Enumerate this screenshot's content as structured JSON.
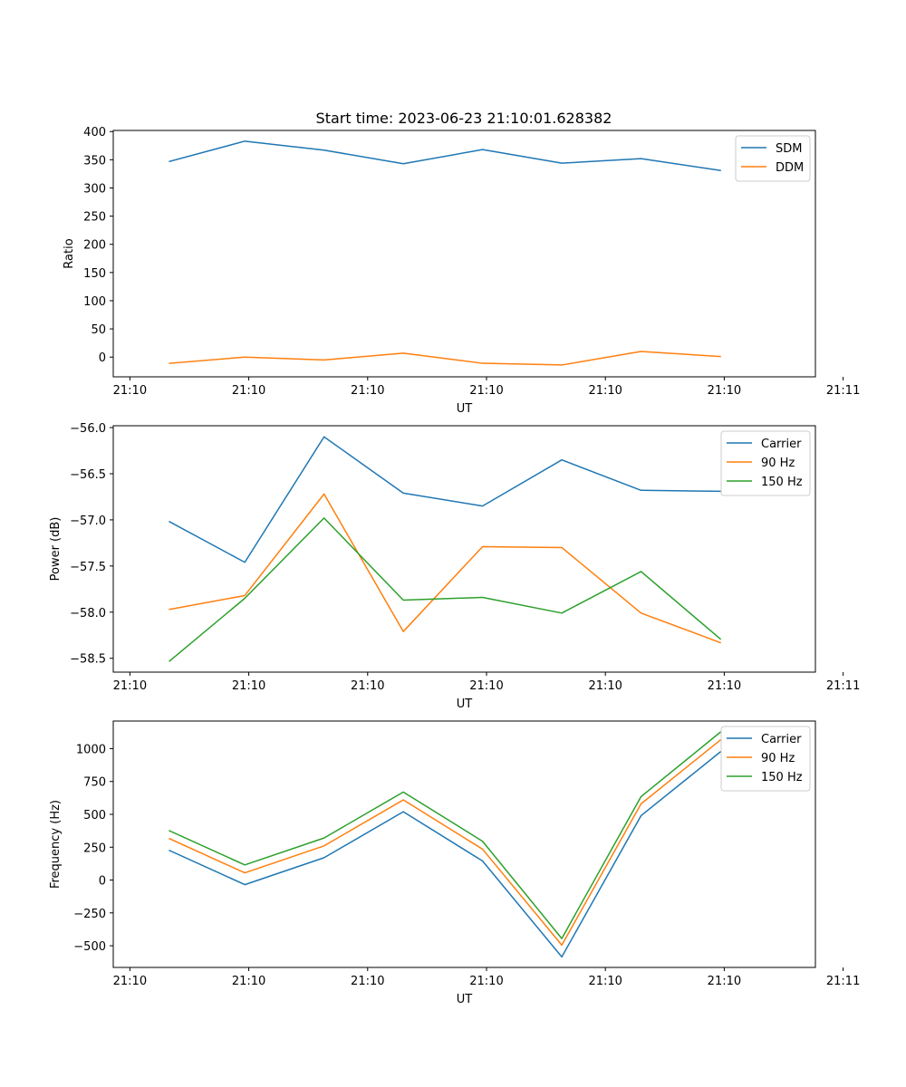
{
  "colors": {
    "blue": "#1f77b4",
    "orange": "#ff7f0e",
    "green": "#2ca02c"
  },
  "chart_data": [
    {
      "type": "line",
      "title": "Start time: 2023-06-23 21:10:01.628382",
      "xlabel": "UT",
      "ylabel": "Ratio",
      "xlim": [
        -0.46,
        8.4
      ],
      "ylim": [
        -35,
        402
      ],
      "x": [
        0.25,
        1.2,
        2.2,
        3.2,
        4.2,
        5.2,
        6.2,
        7.2
      ],
      "x_ticks": [
        {
          "x": -0.25,
          "label": "21:10"
        },
        {
          "x": 1.25,
          "label": "21:10"
        },
        {
          "x": 2.75,
          "label": "21:10"
        },
        {
          "x": 4.25,
          "label": "21:10"
        },
        {
          "x": 5.75,
          "label": "21:10"
        },
        {
          "x": 7.25,
          "label": "21:10"
        },
        {
          "x": 8.75,
          "label": "21:11"
        }
      ],
      "y_ticks": [
        0,
        50,
        100,
        150,
        200,
        250,
        300,
        350,
        400
      ],
      "legend": "top-right",
      "series": [
        {
          "name": "SDM",
          "color": "#1f77b4",
          "values": [
            347,
            383,
            367,
            343,
            368,
            344,
            352,
            331
          ]
        },
        {
          "name": "DDM",
          "color": "#ff7f0e",
          "values": [
            -11,
            0,
            -5,
            7,
            -11,
            -14,
            10,
            1
          ]
        }
      ]
    },
    {
      "type": "line",
      "xlabel": "UT",
      "ylabel": "Power (dB)",
      "xlim": [
        -0.46,
        8.4
      ],
      "ylim": [
        -58.65,
        -55.98
      ],
      "x": [
        0.25,
        1.2,
        2.2,
        3.2,
        4.2,
        5.2,
        6.2,
        7.2
      ],
      "x_ticks": [
        {
          "x": -0.25,
          "label": "21:10"
        },
        {
          "x": 1.25,
          "label": "21:10"
        },
        {
          "x": 2.75,
          "label": "21:10"
        },
        {
          "x": 4.25,
          "label": "21:10"
        },
        {
          "x": 5.75,
          "label": "21:10"
        },
        {
          "x": 7.25,
          "label": "21:10"
        },
        {
          "x": 8.75,
          "label": "21:11"
        }
      ],
      "y_ticks": [
        -56.0,
        -56.5,
        -57.0,
        -57.5,
        -58.0,
        -58.5
      ],
      "y_tick_labels": [
        "−56.0",
        "−56.5",
        "−57.0",
        "−57.5",
        "−58.0",
        "−58.5"
      ],
      "legend": "top-right",
      "series": [
        {
          "name": "Carrier",
          "color": "#1f77b4",
          "values": [
            -57.02,
            -57.46,
            -56.1,
            -56.71,
            -56.85,
            -56.35,
            -56.68,
            -56.69
          ]
        },
        {
          "name": "90 Hz",
          "color": "#ff7f0e",
          "values": [
            -57.97,
            -57.82,
            -56.72,
            -58.21,
            -57.29,
            -57.3,
            -58.01,
            -58.33
          ]
        },
        {
          "name": "150 Hz",
          "color": "#2ca02c",
          "values": [
            -58.53,
            -57.85,
            -56.98,
            -57.87,
            -57.84,
            -58.01,
            -57.56,
            -58.29
          ]
        }
      ]
    },
    {
      "type": "line",
      "xlabel": "UT",
      "ylabel": "Frequency (Hz)",
      "xlim": [
        -0.46,
        8.4
      ],
      "ylim": [
        -665,
        1210
      ],
      "x": [
        0.25,
        1.2,
        2.2,
        3.2,
        4.2,
        5.2,
        6.2,
        7.2
      ],
      "x_ticks": [
        {
          "x": -0.25,
          "label": "21:10"
        },
        {
          "x": 1.25,
          "label": "21:10"
        },
        {
          "x": 2.75,
          "label": "21:10"
        },
        {
          "x": 4.25,
          "label": "21:10"
        },
        {
          "x": 5.75,
          "label": "21:10"
        },
        {
          "x": 7.25,
          "label": "21:10"
        },
        {
          "x": 8.75,
          "label": "21:11"
        }
      ],
      "y_ticks": [
        -500,
        -250,
        0,
        250,
        500,
        750,
        1000
      ],
      "y_tick_labels": [
        "−500",
        "−250",
        "0",
        "250",
        "500",
        "750",
        "1000"
      ],
      "legend": "top-right",
      "series": [
        {
          "name": "Carrier",
          "color": "#1f77b4",
          "values": [
            225,
            -35,
            170,
            520,
            145,
            -585,
            490,
            975
          ]
        },
        {
          "name": "90 Hz",
          "color": "#ff7f0e",
          "values": [
            315,
            55,
            260,
            610,
            235,
            -495,
            580,
            1065
          ]
        },
        {
          "name": "150 Hz",
          "color": "#2ca02c",
          "values": [
            375,
            115,
            320,
            670,
            295,
            -445,
            635,
            1125
          ]
        }
      ]
    }
  ]
}
